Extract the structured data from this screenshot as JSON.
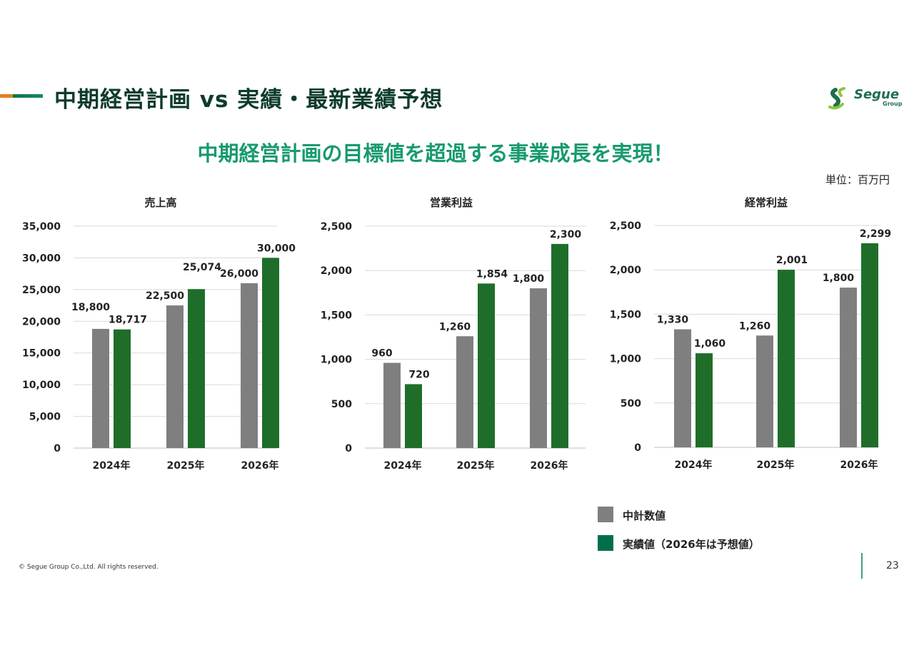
{
  "header": {
    "title": "中期経営計画 vs 実績・最新業績予想",
    "subtitle": "中期経営計画の目標値を超過する事業成長を実現！",
    "unit": "単位：百万円"
  },
  "logo": {
    "text": "Segue",
    "sub": "Group"
  },
  "colors": {
    "plan": "#7f7f7f",
    "actual": "#1e6e2a",
    "legend_actual": "#006e4e",
    "accent": "#179a6e",
    "accent_orange": "#e87d1e",
    "title": "#0d3b2e"
  },
  "chart_data": [
    {
      "type": "bar",
      "title": "売上高",
      "categories": [
        "2024年",
        "2025年",
        "2026年"
      ],
      "series": [
        {
          "name": "中計数値",
          "values": [
            18800,
            22500,
            26000
          ],
          "labels": [
            "18,800",
            "22,500",
            "26,000"
          ]
        },
        {
          "name": "実績値（2026年は予想値）",
          "values": [
            18717,
            25074,
            30000
          ],
          "labels": [
            "18,717",
            "25,074",
            "30,000"
          ]
        }
      ],
      "ylim": [
        0,
        35000
      ],
      "yticks": [
        "0",
        "5,000",
        "10,000",
        "15,000",
        "20,000",
        "25,000",
        "30,000",
        "35,000"
      ],
      "grid": true
    },
    {
      "type": "bar",
      "title": "営業利益",
      "categories": [
        "2024年",
        "2025年",
        "2026年"
      ],
      "series": [
        {
          "name": "中計数値",
          "values": [
            960,
            1260,
            1800
          ],
          "labels": [
            "960",
            "1,260",
            "1,800"
          ]
        },
        {
          "name": "実績値（2026年は予想値）",
          "values": [
            720,
            1854,
            2300
          ],
          "labels": [
            "720",
            "1,854",
            "2,300"
          ]
        }
      ],
      "ylim": [
        0,
        2500
      ],
      "yticks": [
        "0",
        "500",
        "1,000",
        "1,500",
        "2,000",
        "2,500"
      ],
      "grid": true
    },
    {
      "type": "bar",
      "title": "経常利益",
      "categories": [
        "2024年",
        "2025年",
        "2026年"
      ],
      "series": [
        {
          "name": "中計数値",
          "values": [
            1330,
            1260,
            1800
          ],
          "labels": [
            "1,330",
            "1,260",
            "1,800"
          ]
        },
        {
          "name": "実績値（2026年は予想値）",
          "values": [
            1060,
            2001,
            2299
          ],
          "labels": [
            "1,060",
            "2,001",
            "2,299"
          ]
        }
      ],
      "ylim": [
        0,
        2500
      ],
      "yticks": [
        "0",
        "500",
        "1,000",
        "1,500",
        "2,000",
        "2,500"
      ],
      "grid": true
    }
  ],
  "legend": {
    "plan": "中計数値",
    "actual": "実績値（2026年は予想値）"
  },
  "footer": {
    "copyright": "© Segue Group Co.,Ltd. All rights reserved.",
    "page": "23"
  }
}
